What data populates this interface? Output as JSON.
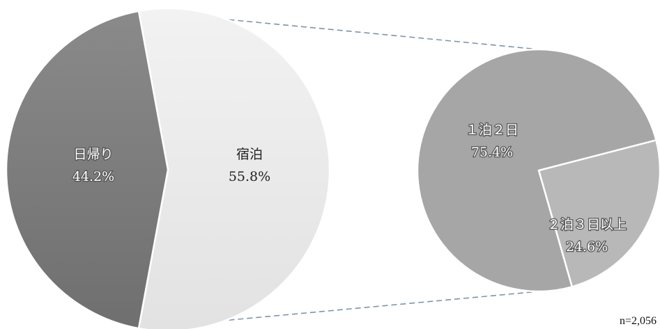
{
  "chart_data": {
    "type": "pie",
    "note": "n=2,056",
    "main_pie": {
      "slices": [
        {
          "name": "宿泊",
          "value": 55.8,
          "label": "55.8%",
          "color": "#ebebeb"
        },
        {
          "name": "日帰り",
          "value": 44.2,
          "label": "44.2%",
          "color": "#808080"
        }
      ]
    },
    "breakdown_pie": {
      "of": "宿泊",
      "slices": [
        {
          "name": "２泊３日以上",
          "value": 24.6,
          "label": "24.6%",
          "color": "#b8b8b8"
        },
        {
          "name": "１泊２日",
          "value": 75.4,
          "label": "75.4%",
          "color": "#a6a6a6"
        }
      ]
    }
  }
}
